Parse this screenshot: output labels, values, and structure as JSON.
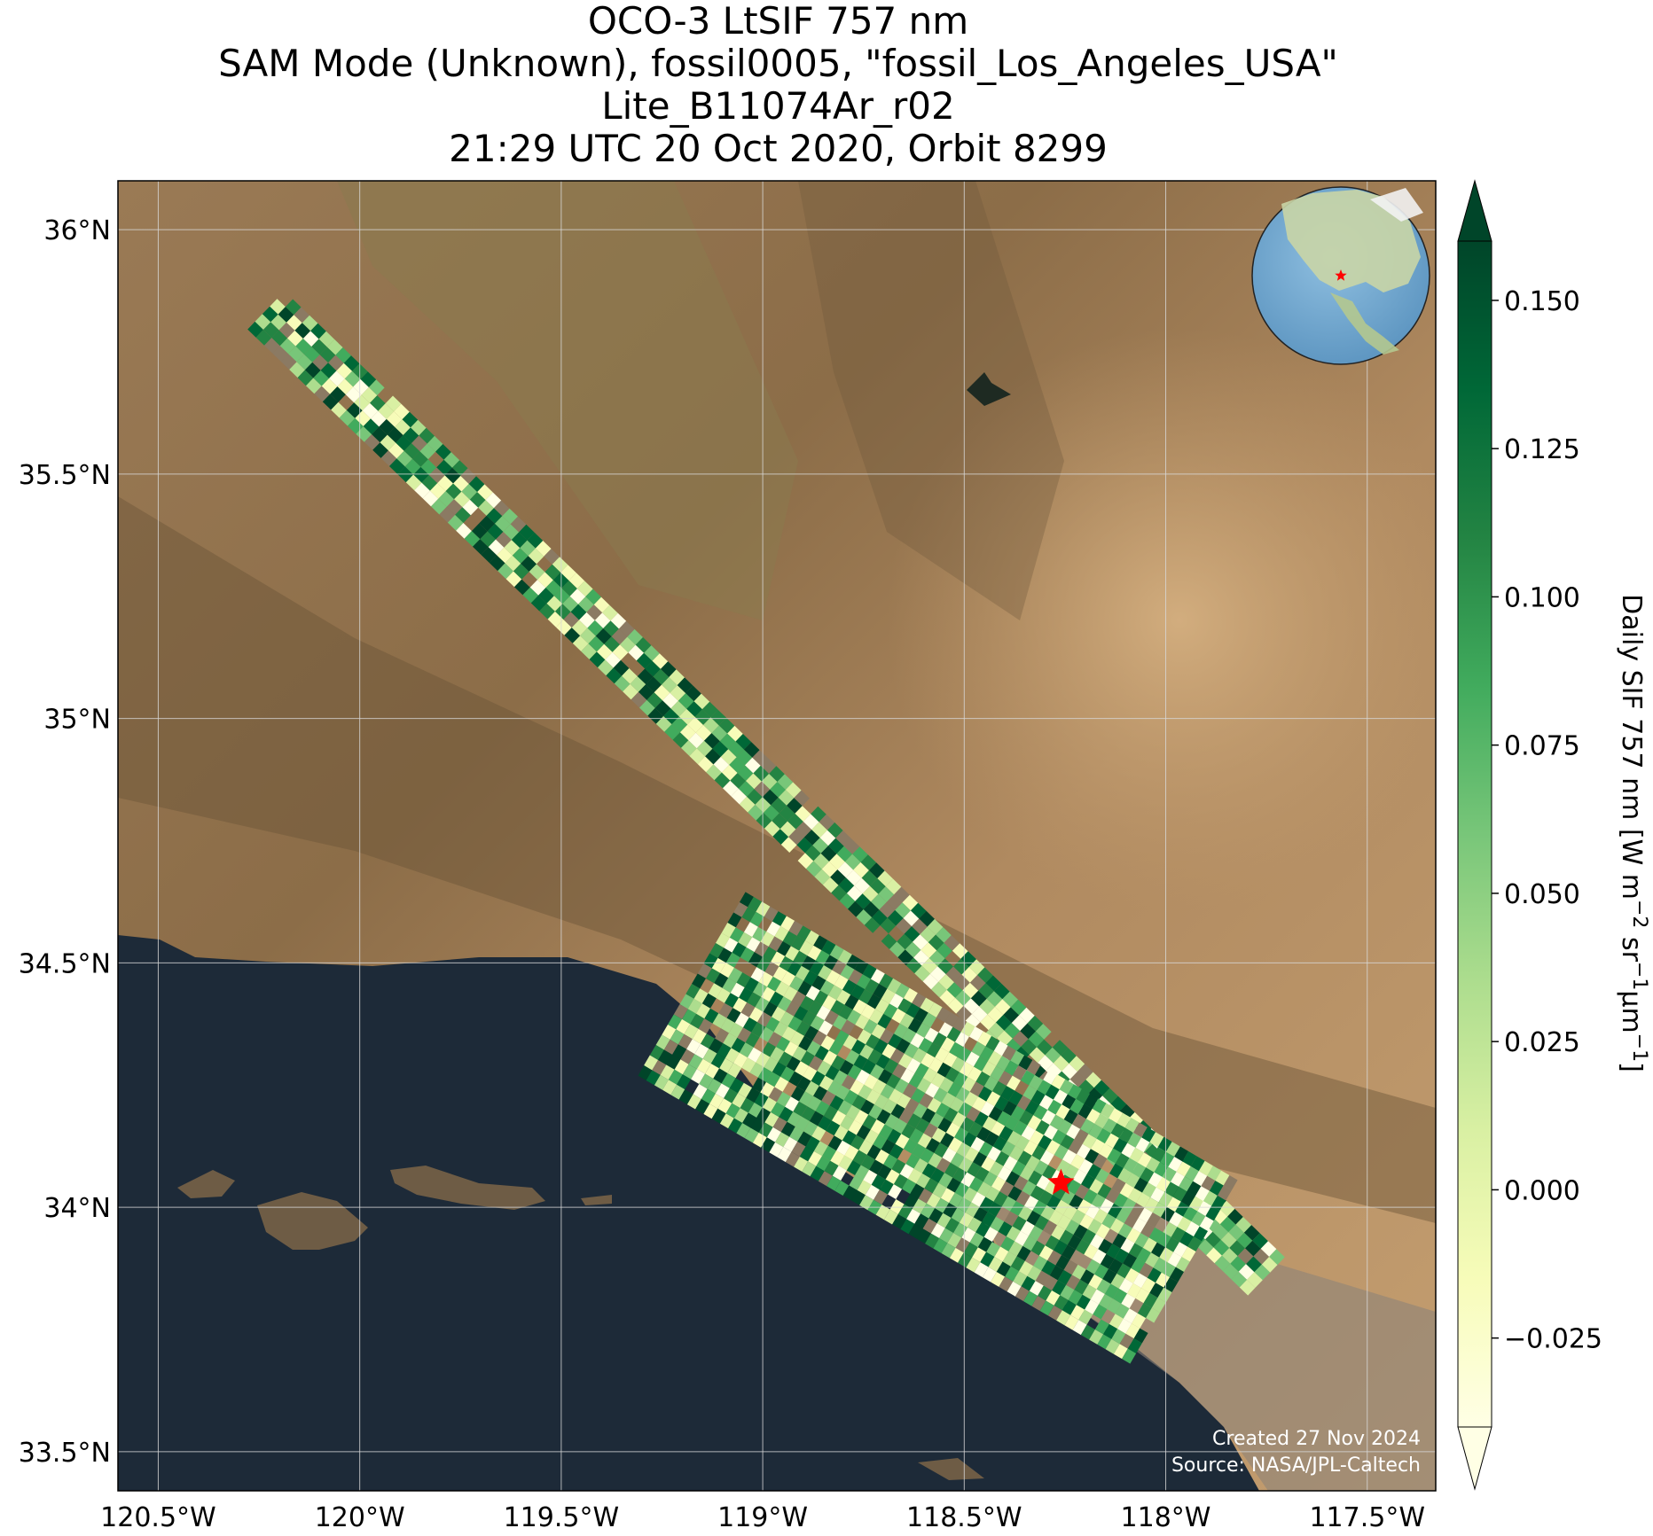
{
  "title": {
    "line1": "OCO-3 LtSIF 757 nm",
    "line2": "SAM Mode (Unknown), fossil0005, \"fossil_Los_Angeles_USA\"",
    "line3": "Lite_B11074Ar_r02",
    "line4": "21:29 UTC 20 Oct 2020, Orbit 8299"
  },
  "map": {
    "lon_range": [
      -120.6,
      -117.33
    ],
    "lat_range": [
      33.42,
      36.1
    ],
    "basemap": "satellite imagery",
    "gridlines": true,
    "lon_ticks": [
      {
        "value": -120.5,
        "label": "120.5°W"
      },
      {
        "value": -120.0,
        "label": "120°W"
      },
      {
        "value": -119.5,
        "label": "119.5°W"
      },
      {
        "value": -119.0,
        "label": "119°W"
      },
      {
        "value": -118.5,
        "label": "118.5°W"
      },
      {
        "value": -118.0,
        "label": "118°W"
      },
      {
        "value": -117.5,
        "label": "117.5°W"
      }
    ],
    "lat_ticks": [
      {
        "value": 36.0,
        "label": "36°N"
      },
      {
        "value": 35.5,
        "label": "35.5°N"
      },
      {
        "value": 35.0,
        "label": "35°N"
      },
      {
        "value": 34.5,
        "label": "34.5°N"
      },
      {
        "value": 34.0,
        "label": "34°N"
      },
      {
        "value": 33.5,
        "label": "33.5°N"
      }
    ],
    "target_marker": {
      "lon": -118.26,
      "lat": 34.05,
      "symbol": "star",
      "color": "#ff0000"
    },
    "inset_globe": {
      "marker": "star",
      "marker_color": "#ff0000"
    },
    "credit_line1": "Created 27 Nov 2024",
    "credit_line2": "Source: NASA/JPL-Caltech"
  },
  "colorbar": {
    "label_main": "Daily SIF 757 nm [W m",
    "label_sup1": "−2",
    "label_mid1": " sr",
    "label_sup2": "−1",
    "label_mid2": "μm",
    "label_sup3": "−1",
    "label_end": "]",
    "colormap": "YlGn",
    "range": [
      -0.04,
      0.16
    ],
    "extend": "both",
    "ticks": [
      {
        "value": -0.025,
        "label": "−0.025"
      },
      {
        "value": 0.0,
        "label": "0.000"
      },
      {
        "value": 0.025,
        "label": "0.025"
      },
      {
        "value": 0.05,
        "label": "0.050"
      },
      {
        "value": 0.075,
        "label": "0.075"
      },
      {
        "value": 0.1,
        "label": "0.100"
      },
      {
        "value": 0.125,
        "label": "0.125"
      },
      {
        "value": 0.15,
        "label": "0.150"
      }
    ]
  }
}
